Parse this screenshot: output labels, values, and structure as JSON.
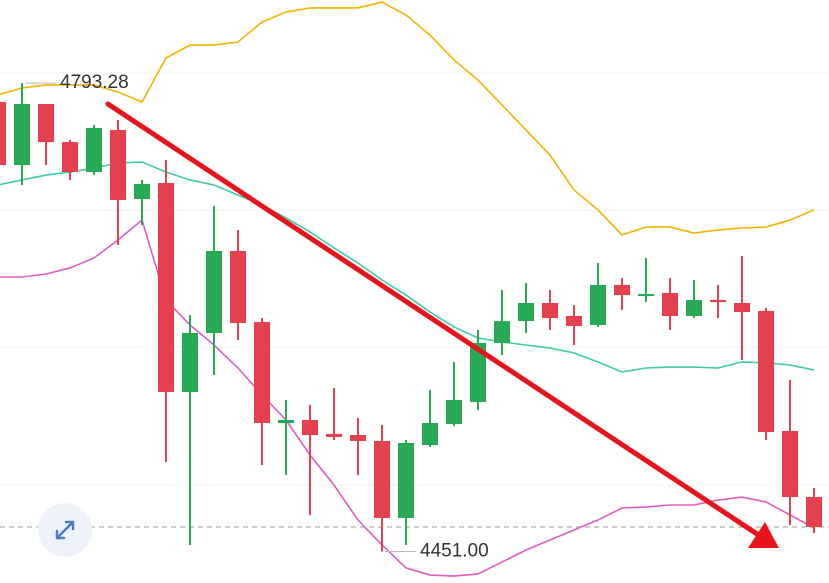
{
  "chart_data": {
    "type": "candlestick",
    "up_color": "#27a955",
    "down_color": "#e5404e",
    "ylim": [
      4428,
      4854
    ],
    "open": [
      4779.5,
      4733.4,
      4778.0,
      4750.2,
      4728.3,
      4759.0,
      4708.6,
      4720.3,
      4567.6,
      4610.7,
      4670.6,
      4618.7,
      4544.9,
      4547.1,
      4536.9,
      4536.1,
      4531.8,
      4475.5,
      4528.8,
      4544.2,
      4560.3,
      4603.4,
      4619.4,
      4632.6,
      4623.1,
      4616.5,
      4645.8,
      4637.7,
      4639.9,
      4623.1,
      4634.8,
      4632.6,
      4626.8,
      4539.1,
      4490.8
    ],
    "high": [
      4788.2,
      4793.28,
      4778.0,
      4751.7,
      4762.7,
      4766.3,
      4722.5,
      4737.1,
      4623.8,
      4703.5,
      4685.9,
      4621.6,
      4561.7,
      4558.1,
      4570.5,
      4548.6,
      4543.5,
      4532.5,
      4569.0,
      4589.5,
      4612.9,
      4642.1,
      4647.2,
      4642.1,
      4631.1,
      4661.8,
      4650.9,
      4665.5,
      4650.9,
      4649.4,
      4645.8,
      4666.9,
      4628.9,
      4576.3,
      4497.4
    ],
    "low": [
      4729.8,
      4718.8,
      4733.4,
      4722.5,
      4726.1,
      4675.0,
      4689.6,
      4516.4,
      4455.8,
      4580.0,
      4605.6,
      4514.2,
      4506.9,
      4477.7,
      4532.5,
      4506.9,
      4451.0,
      4455.8,
      4527.4,
      4542.7,
      4554.4,
      4594.6,
      4610.7,
      4612.9,
      4601.9,
      4615.1,
      4627.5,
      4633.3,
      4612.9,
      4621.6,
      4621.6,
      4590.9,
      4532.5,
      4470.4,
      4464.5
    ],
    "close": [
      4733.4,
      4778.0,
      4750.2,
      4728.3,
      4760.5,
      4707.9,
      4719.6,
      4567.6,
      4610.7,
      4670.6,
      4618.0,
      4544.9,
      4547.1,
      4536.1,
      4534.7,
      4531.8,
      4475.5,
      4530.3,
      4544.9,
      4561.7,
      4603.4,
      4619.4,
      4632.6,
      4621.6,
      4615.8,
      4645.8,
      4638.4,
      4639.2,
      4623.1,
      4634.8,
      4633.3,
      4626.0,
      4538.3,
      4490.8,
      4468.9
    ],
    "lines": [
      {
        "color": "#f0b400",
        "values": [
          4784.6,
          4789.7,
          4791.9,
          4791.9,
          4791.9,
          4786.8,
          4779.5,
          4811.6,
          4821.1,
          4821.1,
          4823.3,
          4837.9,
          4845.2,
          4848.2,
          4848.2,
          4848.2,
          4852.5,
          4843.0,
          4828.4,
          4810.2,
          4795.5,
          4777.3,
          4759.0,
          4740.7,
          4715.2,
          4700.6,
          4682.3,
          4688.1,
          4688.1,
          4683.7,
          4685.9,
          4687.4,
          4688.1,
          4693.2,
          4700.6
        ]
      },
      {
        "color": "#3fcca6",
        "values": [
          4718.8,
          4722.5,
          4726.1,
          4728.3,
          4731.2,
          4734.9,
          4735.6,
          4728.3,
          4722.5,
          4718.8,
          4711.5,
          4704.2,
          4694.7,
          4684.5,
          4672.8,
          4661.8,
          4649.4,
          4638.4,
          4626.0,
          4615.1,
          4607.0,
          4604.1,
          4601.9,
          4599.7,
          4596.1,
          4589.5,
          4582.2,
          4585.1,
          4585.8,
          4585.8,
          4585.1,
          4589.5,
          4588.8,
          4587.3,
          4583.6
        ]
      },
      {
        "color": "#e05cc0",
        "values": [
          4651.6,
          4651.6,
          4653.8,
          4658.2,
          4665.5,
          4678.6,
          4693.2,
          4634.8,
          4616.5,
          4601.9,
          4585.1,
          4565.4,
          4547.1,
          4521.5,
          4499.6,
          4474.0,
          4455.8,
          4439.0,
          4433.8,
          4433.1,
          4434.6,
          4443.3,
          4452.1,
          4459.4,
          4466.7,
          4474.0,
          4482.8,
          4483.5,
          4485.0,
          4485.0,
          4488.6,
          4490.8,
          4487.2,
          4477.7,
          4468.2
        ]
      }
    ],
    "annotations": [
      {
        "value": 4793.28,
        "label": "4793.28"
      },
      {
        "value": 4451.0,
        "label": "4451.00"
      }
    ]
  }
}
